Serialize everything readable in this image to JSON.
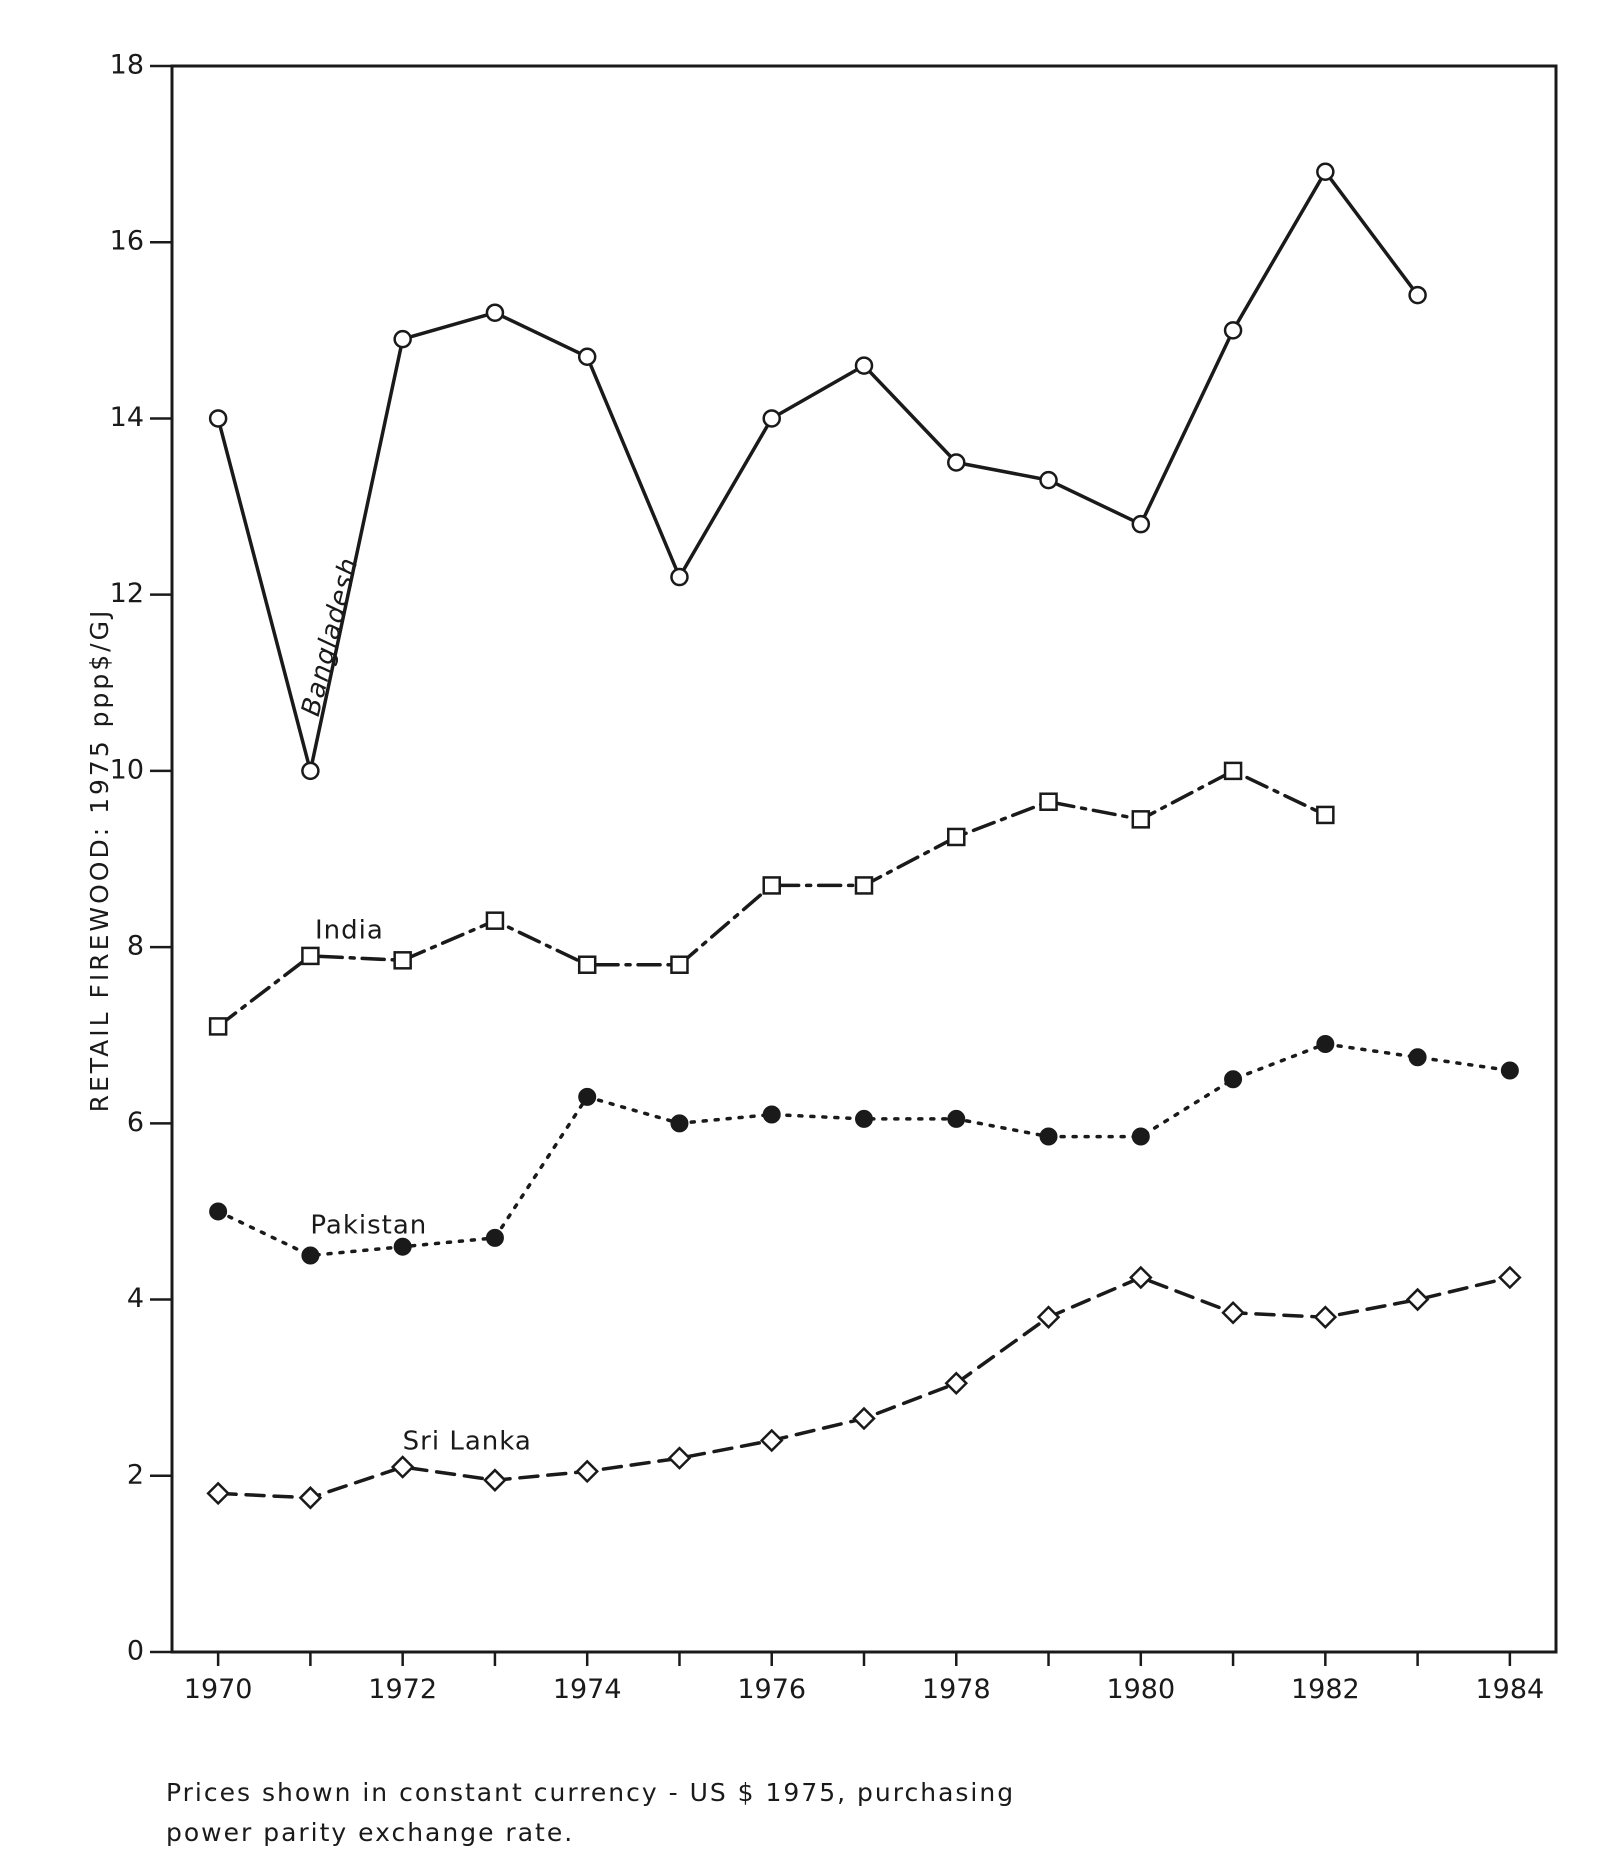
{
  "chart_data": {
    "type": "line",
    "ylabel": "RETAIL FIREWOOD: 1975 ppp$/GJ",
    "xlabel": "",
    "title": "",
    "xlim": [
      1969.5,
      1984.5
    ],
    "ylim": [
      0,
      18
    ],
    "x_ticks": [
      1970,
      1972,
      1974,
      1976,
      1978,
      1980,
      1982,
      1984
    ],
    "y_ticks": [
      0,
      2,
      4,
      6,
      8,
      10,
      12,
      14,
      16,
      18
    ],
    "grid": false,
    "legend": "none (series labelled inline)",
    "series": [
      {
        "name": "Bangladesh",
        "line_style": "solid",
        "marker": "open-circle",
        "x": [
          1970,
          1971,
          1972,
          1973,
          1974,
          1975,
          1976,
          1977,
          1978,
          1979,
          1980,
          1981,
          1982,
          1983
        ],
        "values": [
          14.0,
          10.0,
          14.9,
          15.2,
          14.7,
          12.2,
          14.0,
          14.6,
          13.5,
          13.3,
          12.8,
          15.0,
          16.8,
          15.4
        ]
      },
      {
        "name": "India",
        "line_style": "dash-dot",
        "marker": "open-square",
        "x": [
          1970,
          1971,
          1972,
          1973,
          1974,
          1975,
          1976,
          1977,
          1978,
          1979,
          1980,
          1981,
          1982
        ],
        "values": [
          7.1,
          7.9,
          7.85,
          8.3,
          7.8,
          7.8,
          8.7,
          8.7,
          9.25,
          9.65,
          9.45,
          10.0,
          9.5
        ]
      },
      {
        "name": "Pakistan",
        "line_style": "dotted",
        "marker": "filled-circle",
        "x": [
          1970,
          1971,
          1972,
          1973,
          1974,
          1975,
          1976,
          1977,
          1978,
          1979,
          1980,
          1981,
          1982,
          1983,
          1984
        ],
        "values": [
          5.0,
          4.5,
          4.6,
          4.7,
          6.3,
          6.0,
          6.1,
          6.05,
          6.05,
          5.85,
          5.85,
          6.5,
          6.9,
          6.75,
          6.6
        ]
      },
      {
        "name": "Sri Lanka",
        "line_style": "dashed",
        "marker": "open-diamond",
        "x": [
          1970,
          1971,
          1972,
          1973,
          1974,
          1975,
          1976,
          1977,
          1978,
          1979,
          1980,
          1981,
          1982,
          1983,
          1984
        ],
        "values": [
          1.8,
          1.75,
          2.1,
          1.95,
          2.05,
          2.2,
          2.4,
          2.65,
          3.05,
          3.8,
          4.25,
          3.85,
          3.8,
          4.0,
          4.25
        ]
      }
    ],
    "colors": {
      "ink": "#1a1a1a",
      "background": "#ffffff"
    }
  },
  "footnote": {
    "line1": "Prices shown in constant currency - US $ 1975, purchasing",
    "line2": "power parity exchange rate."
  }
}
